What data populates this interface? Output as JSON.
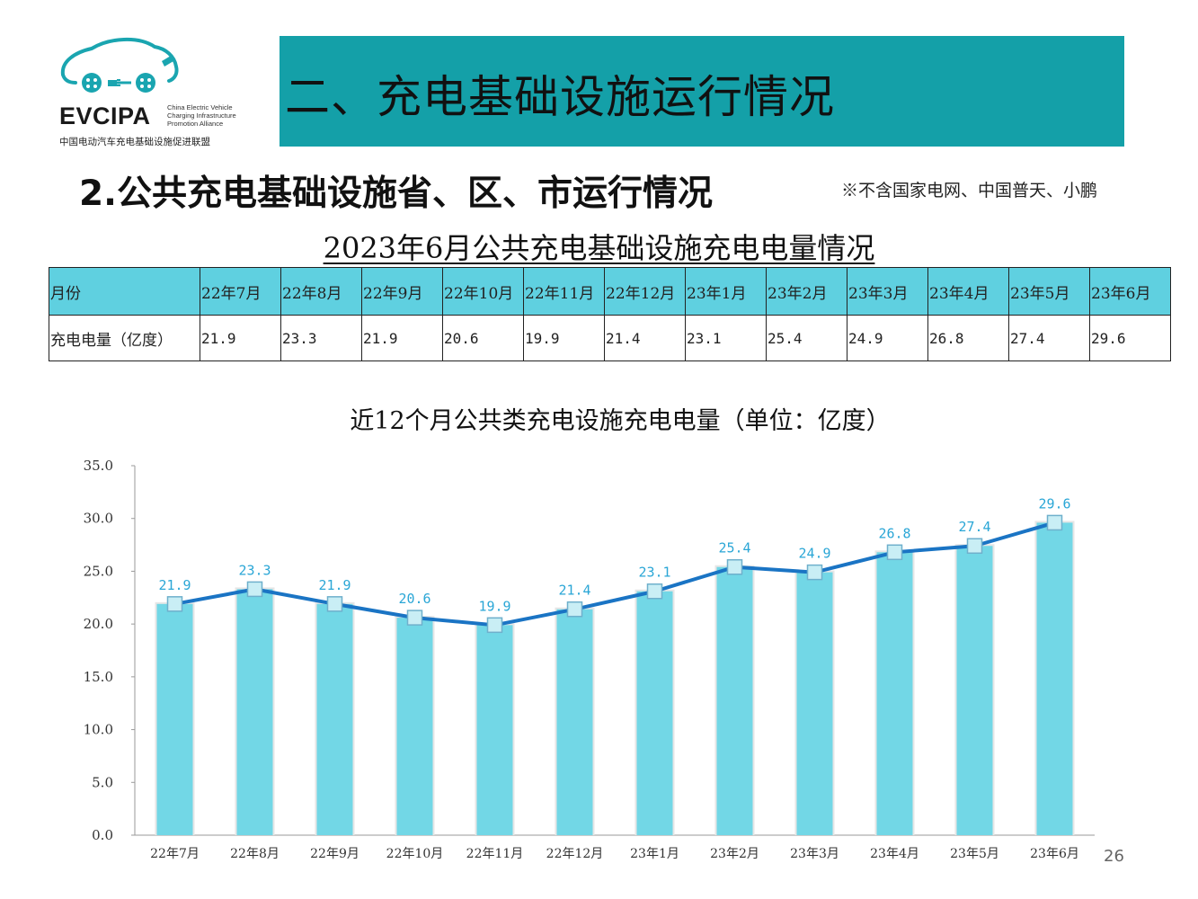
{
  "logo": {
    "name": "EVCIPA",
    "english": [
      "China Electric Vehicle",
      "Charging Infrastructure",
      "Promotion Alliance"
    ],
    "chinese": "中国电动汽车充电基础设施促进联盟"
  },
  "banner": {
    "title": "二、充电基础设施运行情况",
    "color": "#14a0a8"
  },
  "subtitle": "2.公共充电基础设施省、区、市运行情况",
  "note": "※不含国家电网、中国普天、小鹏",
  "table": {
    "title": "2023年6月公共充电基础设施充电电量情况",
    "header": [
      "月份",
      "22年7月",
      "22年8月",
      "22年9月",
      "22年10月",
      "22年11月",
      "22年12月",
      "23年1月",
      "23年2月",
      "23年3月",
      "23年4月",
      "23年5月",
      "23年6月"
    ],
    "row": [
      "充电电量（亿度）",
      "21.9",
      "23.3",
      "21.9",
      "20.6",
      "19.9",
      "21.4",
      "23.1",
      "25.4",
      "24.9",
      "26.8",
      "27.4",
      "29.6"
    ]
  },
  "chart_data": {
    "type": "bar",
    "title": "近12个月公共类充电设施充电电量（单位：亿度）",
    "categories": [
      "22年7月",
      "22年8月",
      "22年9月",
      "22年10月",
      "22年11月",
      "22年12月",
      "23年1月",
      "23年2月",
      "23年3月",
      "23年4月",
      "23年5月",
      "23年6月"
    ],
    "series": [
      {
        "type": "bar",
        "values": [
          21.9,
          23.3,
          21.9,
          20.6,
          19.9,
          21.4,
          23.1,
          25.4,
          24.9,
          26.8,
          27.4,
          29.6
        ],
        "color": "#72d7e6"
      },
      {
        "type": "line",
        "values": [
          21.9,
          23.3,
          21.9,
          20.6,
          19.9,
          21.4,
          23.1,
          25.4,
          24.9,
          26.8,
          27.4,
          29.6
        ],
        "color": "#1a74c4"
      }
    ],
    "data_labels": [
      "21.9",
      "23.3",
      "21.9",
      "20.6",
      "19.9",
      "21.4",
      "23.1",
      "25.4",
      "24.9",
      "26.8",
      "27.4",
      "29.6"
    ],
    "ylim": [
      0,
      35
    ],
    "yticks": [
      "0.0",
      "5.0",
      "10.0",
      "15.0",
      "20.0",
      "25.0",
      "30.0",
      "35.0"
    ],
    "grid": false,
    "legend": "none"
  },
  "page_number": "26"
}
